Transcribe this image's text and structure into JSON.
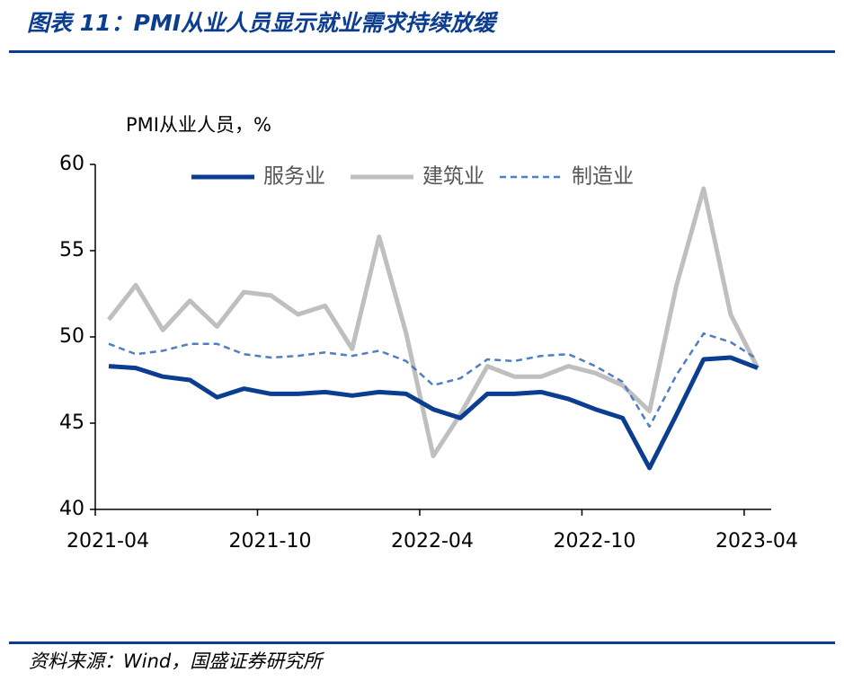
{
  "chart_data": {
    "type": "line",
    "title": "图表 11：PMI从业人员显示就业需求持续放缓",
    "y_label": "PMI从业人员，%",
    "source": "资料来源：Wind，国盛证券研究所",
    "categories": [
      "2021-04",
      null,
      null,
      null,
      null,
      null,
      "2021-10",
      null,
      null,
      null,
      null,
      null,
      "2022-04",
      null,
      null,
      null,
      null,
      null,
      "2022-10",
      null,
      null,
      null,
      null,
      null,
      "2023-04"
    ],
    "series": [
      {
        "name": "服务业",
        "color": "#0b3d91",
        "line_width": 5,
        "line_style": "solid",
        "values": [
          48.3,
          48.2,
          47.7,
          47.5,
          46.5,
          47.0,
          46.7,
          46.7,
          46.8,
          46.6,
          46.8,
          46.7,
          45.8,
          45.3,
          46.7,
          46.7,
          46.8,
          46.4,
          45.8,
          45.3,
          42.4,
          45.5,
          48.7,
          48.8,
          48.2
        ]
      },
      {
        "name": "建筑业",
        "color": "#bfbfbf",
        "line_width": 5,
        "line_style": "solid",
        "values": [
          51.0,
          53.0,
          50.4,
          52.1,
          50.6,
          52.6,
          52.4,
          51.3,
          51.8,
          49.3,
          55.8,
          50.2,
          43.1,
          45.5,
          48.3,
          47.7,
          47.7,
          48.3,
          47.9,
          47.2,
          45.7,
          53.0,
          58.6,
          51.3,
          48.2
        ]
      },
      {
        "name": "制造业",
        "color": "#4f7fc0",
        "line_width": 2.5,
        "line_style": "dashed",
        "values": [
          49.6,
          49.0,
          49.2,
          49.6,
          49.6,
          49.0,
          48.8,
          48.9,
          49.1,
          48.9,
          49.2,
          48.6,
          47.2,
          47.6,
          48.7,
          48.6,
          48.9,
          49.0,
          48.3,
          47.4,
          44.8,
          47.8,
          50.2,
          49.7,
          48.7
        ]
      }
    ],
    "ylim": [
      40,
      60
    ],
    "yticks": [
      40,
      45,
      50,
      55,
      60
    ],
    "grid": false,
    "legend": "top"
  }
}
